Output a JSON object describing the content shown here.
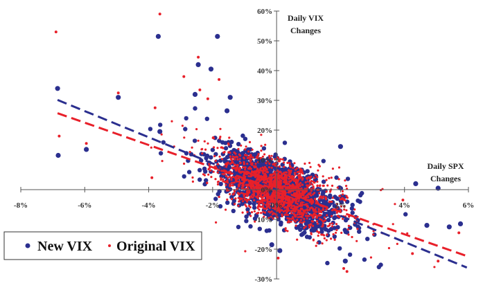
{
  "chart_data": {
    "type": "scatter",
    "y_axis_title_lines": [
      "Daily VIX",
      "Changes"
    ],
    "x_axis_title_lines": [
      "Daily SPX",
      "Changes"
    ],
    "xlim": [
      -0.08,
      0.06
    ],
    "ylim": [
      -0.3,
      0.6
    ],
    "x_ticks": [
      -0.08,
      -0.06,
      -0.04,
      -0.02,
      0.0,
      0.02,
      0.04,
      0.06
    ],
    "x_tick_labels": [
      "-8%",
      "-6%",
      "-4%",
      "-2%",
      "0%",
      "2%",
      "4%",
      "6%"
    ],
    "y_ticks": [
      -0.3,
      -0.2,
      -0.1,
      0.0,
      0.1,
      0.2,
      0.3,
      0.4,
      0.5,
      0.6
    ],
    "y_tick_labels": [
      "-30%",
      "-20%",
      "-10%",
      "0%",
      "10%",
      "20%",
      "30%",
      "40%",
      "50%",
      "60%"
    ],
    "grid": false,
    "legend_position": "bottom-left",
    "series": [
      {
        "name": "New VIX",
        "color": "#2b2f8f",
        "marker": "large-dot",
        "trendline": {
          "style": "dashed",
          "slope": -4.4,
          "intercept": 0.0
        },
        "outliers": [
          {
            "x": -0.0685,
            "y": 0.34
          },
          {
            "x": -0.0683,
            "y": 0.115
          },
          {
            "x": -0.0595,
            "y": 0.135
          },
          {
            "x": -0.0495,
            "y": 0.31
          },
          {
            "x": -0.037,
            "y": 0.515
          },
          {
            "x": -0.0365,
            "y": 0.195
          },
          {
            "x": -0.0255,
            "y": 0.32
          },
          {
            "x": -0.0245,
            "y": 0.42
          },
          {
            "x": -0.0205,
            "y": 0.405
          },
          {
            "x": -0.0185,
            "y": 0.515
          },
          {
            "x": -0.0145,
            "y": 0.31
          },
          {
            "x": -0.0155,
            "y": 0.265
          },
          {
            "x": 0.02,
            "y": 0.145
          },
          {
            "x": 0.0435,
            "y": 0.02
          },
          {
            "x": 0.0505,
            "y": 0.005
          },
          {
            "x": 0.0575,
            "y": -0.115
          },
          {
            "x": 0.054,
            "y": -0.125
          },
          {
            "x": 0.047,
            "y": -0.12
          },
          {
            "x": 0.0215,
            "y": -0.24
          },
          {
            "x": 0.001,
            "y": -0.205
          },
          {
            "x": -0.0015,
            "y": -0.185
          }
        ]
      },
      {
        "name": "Original VIX",
        "color": "#e8202a",
        "marker": "small-dot",
        "trendline": {
          "style": "dashed",
          "slope": -3.75,
          "intercept": 0.0
        },
        "outliers": [
          {
            "x": -0.069,
            "y": 0.53
          },
          {
            "x": -0.068,
            "y": 0.18
          },
          {
            "x": -0.0595,
            "y": 0.155
          },
          {
            "x": -0.0495,
            "y": 0.325
          },
          {
            "x": -0.0365,
            "y": 0.59
          },
          {
            "x": -0.038,
            "y": 0.275
          },
          {
            "x": -0.029,
            "y": 0.38
          },
          {
            "x": -0.0245,
            "y": 0.445
          },
          {
            "x": -0.024,
            "y": 0.335
          },
          {
            "x": -0.0215,
            "y": 0.305
          },
          {
            "x": -0.018,
            "y": 0.37
          },
          {
            "x": -0.039,
            "y": 0.04
          },
          {
            "x": 0.021,
            "y": -0.265
          },
          {
            "x": 0.022,
            "y": -0.275
          },
          {
            "x": 0.0505,
            "y": -0.24
          },
          {
            "x": 0.0425,
            "y": -0.215
          },
          {
            "x": 0.057,
            "y": -0.145
          },
          {
            "x": 0.0395,
            "y": -0.035
          },
          {
            "x": 0.0005,
            "y": -0.23
          }
        ]
      }
    ]
  }
}
